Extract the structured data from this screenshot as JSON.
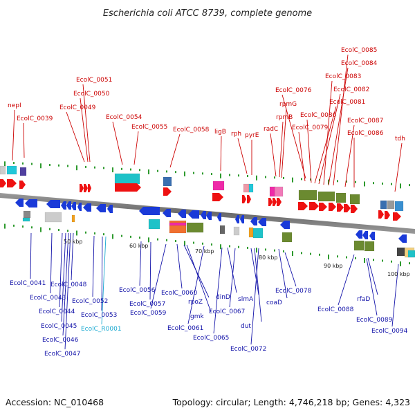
{
  "header": {
    "title": "Escherichia coli ATCC 8739, complete genome"
  },
  "footer": {
    "accession": "Accession: NC_010468",
    "topology": "Topology: circular; Length: 4,746,218 bp; Genes: 4,323"
  },
  "scale": [
    "50 kbp",
    "60 kbp",
    "70 kbp",
    "80 kbp",
    "90 kbp",
    "100 kbp"
  ],
  "colors": {
    "forward_gene": "#ee1111",
    "reverse_gene": "#1a3ad8",
    "top_label": "#cc0000",
    "bottom_label": "#1010a8",
    "rna_label": "#17a8d0"
  },
  "top_labels": [
    "nepI",
    "EcolC_0039",
    "EcolC_0051",
    "EcolC_0050",
    "EcolC_0049",
    "EcolC_0054",
    "EcolC_0055",
    "EcolC_0058",
    "ligB",
    "rph",
    "pyrE",
    "radC",
    "rpmB",
    "rpmG",
    "EcolC_0076",
    "EcolC_0085",
    "EcolC_0084",
    "EcolC_0083",
    "EcolC_0082",
    "EcolC_0081",
    "EcolC_0080",
    "EcolC_0079",
    "EcolC_0087",
    "EcolC_0086",
    "tdh"
  ],
  "bottom_labels": [
    "EcolC_0041",
    "EcolC_0043",
    "EcolC_0044",
    "EcolC_0045",
    "EcolC_0046",
    "EcolC_0047",
    "EcolC_0048",
    "EcolC_0052",
    "EcolC_0053",
    "EcolC_R0001",
    "EcolC_0056",
    "EcolC_0057",
    "EcolC_0059",
    "EcolC_0060",
    "rpoZ",
    "gmk",
    "EcolC_0061",
    "EcolC_0065",
    "dinD",
    "EcolC_0067",
    "slmA",
    "dut",
    "EcolC_0072",
    "coaD",
    "EcolC_0078",
    "EcolC_0088",
    "rfaD",
    "EcolC_0089",
    "EcolC_0094"
  ]
}
